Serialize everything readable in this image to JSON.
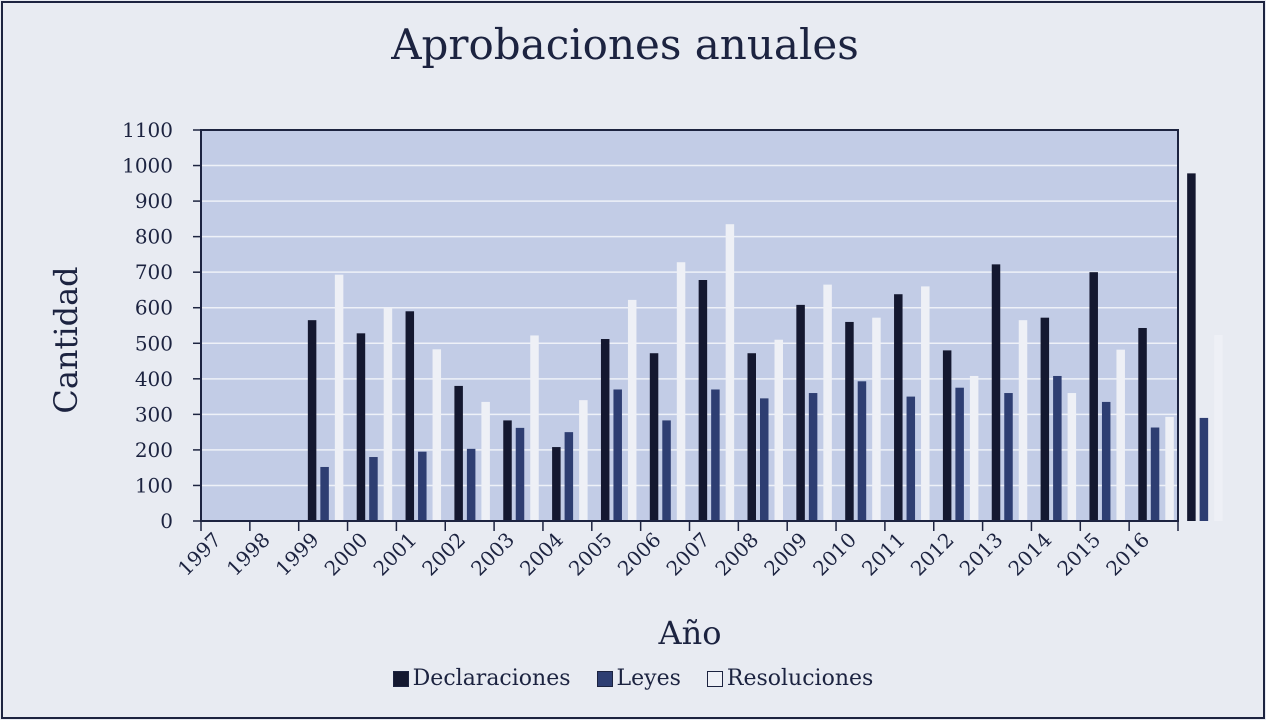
{
  "chart_data": {
    "type": "bar",
    "title": "Aprobaciones anuales",
    "xlabel": "Año",
    "ylabel": "Cantidad",
    "ylim": [
      0,
      1100
    ],
    "yticks": [
      0,
      100,
      200,
      300,
      400,
      500,
      600,
      700,
      800,
      900,
      1000,
      1100
    ],
    "grid": true,
    "legend_position": "bottom",
    "categories": [
      "1997",
      "1998",
      "1999",
      "2000",
      "2001",
      "2002",
      "2003",
      "2004",
      "2005",
      "2006",
      "2007",
      "2008",
      "2009",
      "2010",
      "2011",
      "2012",
      "2013",
      "2014",
      "2015",
      "2016"
    ],
    "series": [
      {
        "name": "Declaraciones",
        "color": "#141830",
        "values": [
          0,
          565,
          528,
          590,
          380,
          283,
          208,
          512,
          472,
          678,
          472,
          608,
          560,
          638,
          480,
          722,
          572,
          700,
          543,
          978
        ]
      },
      {
        "name": "Leyes",
        "color": "#2e3e72",
        "values": [
          0,
          152,
          180,
          195,
          203,
          262,
          250,
          370,
          283,
          370,
          345,
          360,
          393,
          350,
          375,
          360,
          408,
          335,
          263,
          290
        ]
      },
      {
        "name": "Resoluciones",
        "color": "#eef0f6",
        "values": [
          0,
          693,
          598,
          483,
          335,
          522,
          340,
          622,
          728,
          835,
          510,
          665,
          572,
          660,
          408,
          565,
          360,
          482,
          293,
          523
        ]
      }
    ]
  }
}
